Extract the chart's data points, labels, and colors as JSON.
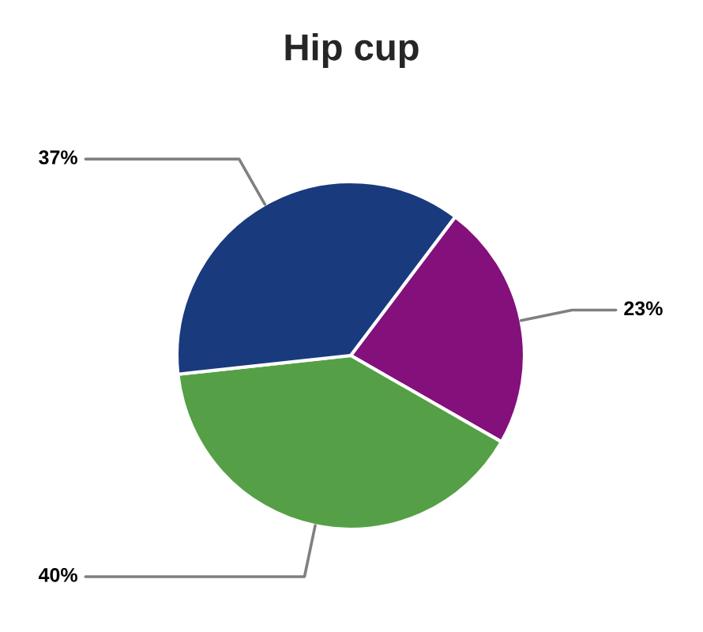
{
  "chart_data": {
    "type": "pie",
    "title": "Hip cup",
    "categories": [
      null,
      null,
      null
    ],
    "values": [
      23,
      40,
      37
    ],
    "colors": [
      "#84107c",
      "#55a046",
      "#1a3a7e"
    ],
    "value_labels": [
      "23%",
      "40%",
      "37%"
    ],
    "legend": false
  }
}
